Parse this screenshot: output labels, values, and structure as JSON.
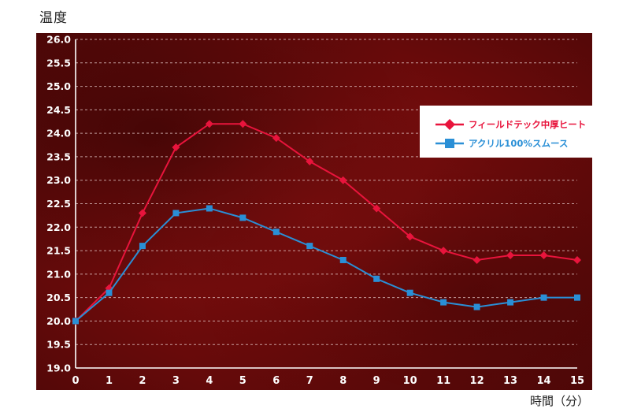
{
  "chart_data": {
    "type": "line",
    "ylabel": "温度",
    "xlabel": "時間（分）",
    "x": [
      0,
      1,
      2,
      3,
      4,
      5,
      6,
      7,
      8,
      9,
      10,
      11,
      12,
      13,
      14,
      15
    ],
    "x_tick_labels": [
      "0",
      "1",
      "2",
      "3",
      "4",
      "5",
      "6",
      "7",
      "8",
      "9",
      "10",
      "11",
      "12",
      "13",
      "14",
      "15"
    ],
    "y_tick_labels": [
      "19.0",
      "19.5",
      "20.0",
      "20.5",
      "21.0",
      "21.5",
      "22.0",
      "22.5",
      "23.0",
      "23.5",
      "24.0",
      "24.5",
      "25.0",
      "25.5",
      "26.0"
    ],
    "ylim": [
      19.0,
      26.0
    ],
    "xlim": [
      0,
      15
    ],
    "grid": true,
    "legend_position": "top-right",
    "series": [
      {
        "name": "フィールドテック中厚ヒート",
        "color": "#e8143c",
        "marker": "diamond",
        "values": [
          20.0,
          20.7,
          22.3,
          23.7,
          24.2,
          24.2,
          23.9,
          23.4,
          23.0,
          22.4,
          21.8,
          21.5,
          21.3,
          21.4,
          21.4,
          21.3
        ]
      },
      {
        "name": "アクリル100%スムース",
        "color": "#2a8fd6",
        "marker": "square",
        "values": [
          20.0,
          20.6,
          21.6,
          22.3,
          22.4,
          22.2,
          21.9,
          21.6,
          21.3,
          20.9,
          20.6,
          20.4,
          20.3,
          20.4,
          20.5,
          20.5
        ]
      }
    ]
  }
}
